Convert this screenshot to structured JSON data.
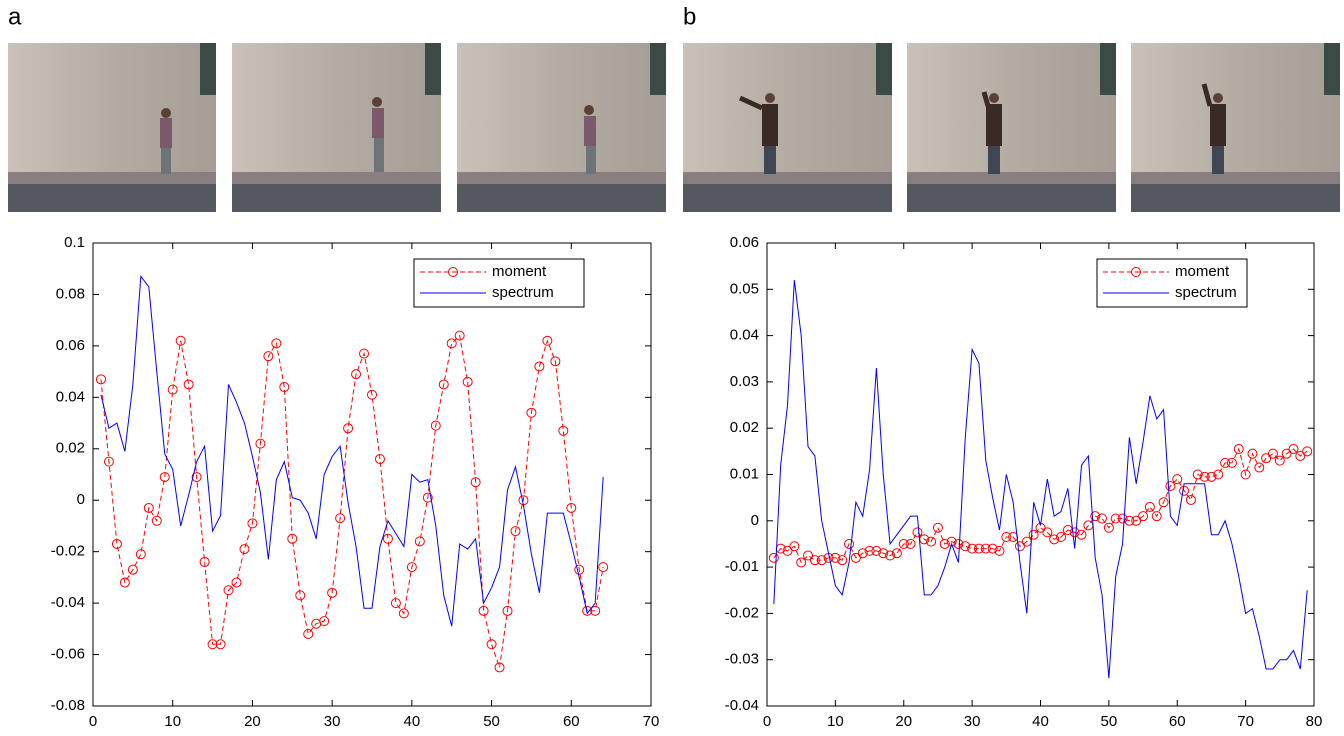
{
  "chart_data": [
    {
      "type": "line",
      "label": "a",
      "x": [
        1,
        2,
        3,
        4,
        5,
        6,
        7,
        8,
        9,
        10,
        11,
        12,
        13,
        14,
        15,
        16,
        17,
        18,
        19,
        20,
        21,
        22,
        23,
        24,
        25,
        26,
        27,
        28,
        29,
        30,
        31,
        32,
        33,
        34,
        35,
        36,
        37,
        38,
        39,
        40,
        41,
        42,
        43,
        44,
        45,
        46,
        47,
        48,
        49,
        50,
        51,
        52,
        53,
        54,
        55,
        56,
        57,
        58,
        59,
        60,
        61,
        62,
        63,
        64
      ],
      "series": [
        {
          "name": "moment",
          "color": "#ff0000",
          "dashed": true,
          "marker": "circle",
          "values": [
            0.047,
            0.015,
            -0.017,
            -0.032,
            -0.027,
            -0.021,
            -0.003,
            -0.008,
            0.009,
            0.043,
            0.062,
            0.045,
            0.009,
            -0.024,
            -0.056,
            -0.056,
            -0.035,
            -0.032,
            -0.019,
            -0.009,
            0.022,
            0.056,
            0.061,
            0.044,
            -0.015,
            -0.037,
            -0.052,
            -0.048,
            -0.047,
            -0.036,
            -0.007,
            0.028,
            0.049,
            0.057,
            0.041,
            0.016,
            -0.015,
            -0.04,
            -0.044,
            -0.026,
            -0.016,
            0.001,
            0.029,
            0.045,
            0.061,
            0.064,
            0.046,
            0.007,
            -0.043,
            -0.056,
            -0.065,
            -0.043,
            -0.012,
            0,
            0.034,
            0.052,
            0.062,
            0.054,
            0.027,
            -0.003,
            -0.027,
            -0.043,
            -0.043,
            -0.026
          ]
        },
        {
          "name": "spectrum",
          "color": "#0000ff",
          "dashed": false,
          "marker": "none",
          "values": [
            0.041,
            0.028,
            0.03,
            0.019,
            0.045,
            0.087,
            0.083,
            0.05,
            0.018,
            0.012,
            -0.01,
            0.002,
            0.015,
            0.021,
            -0.012,
            -0.006,
            0.045,
            0.038,
            0.03,
            0.017,
            0.003,
            -0.023,
            0.008,
            0.015,
            0.001,
            0,
            -0.005,
            -0.015,
            0.01,
            0.017,
            0.021,
            -0.001,
            -0.018,
            -0.042,
            -0.042,
            -0.018,
            -0.008,
            -0.013,
            -0.018,
            0.01,
            0.007,
            0.008,
            -0.01,
            -0.037,
            -0.049,
            -0.017,
            -0.019,
            -0.015,
            -0.04,
            -0.034,
            -0.026,
            0.004,
            0.013,
            -0.002,
            -0.021,
            -0.036,
            -0.005,
            -0.005,
            -0.005,
            -0.017,
            -0.03,
            -0.044,
            -0.04,
            0.009
          ]
        }
      ],
      "xlim": [
        0,
        70
      ],
      "xticks": [
        0,
        10,
        20,
        30,
        40,
        50,
        60,
        70
      ],
      "ylim": [
        -0.08,
        0.1
      ],
      "yticks": [
        -0.08,
        -0.06,
        -0.04,
        -0.02,
        0,
        0.02,
        0.04,
        0.06,
        0.08,
        0.1
      ],
      "legend": "upper right",
      "grid": false
    },
    {
      "type": "line",
      "label": "b",
      "x": [
        1,
        2,
        3,
        4,
        5,
        6,
        7,
        8,
        9,
        10,
        11,
        12,
        13,
        14,
        15,
        16,
        17,
        18,
        19,
        20,
        21,
        22,
        23,
        24,
        25,
        26,
        27,
        28,
        29,
        30,
        31,
        32,
        33,
        34,
        35,
        36,
        37,
        38,
        39,
        40,
        41,
        42,
        43,
        44,
        45,
        46,
        47,
        48,
        49,
        50,
        51,
        52,
        53,
        54,
        55,
        56,
        57,
        58,
        59,
        60,
        61,
        62,
        63,
        64,
        65,
        66,
        67,
        68,
        69,
        70,
        71,
        72,
        73,
        74,
        75,
        76,
        77,
        78,
        79
      ],
      "series": [
        {
          "name": "moment",
          "color": "#ff0000",
          "dashed": true,
          "marker": "circle",
          "values": [
            -0.008,
            -0.006,
            -0.0065,
            -0.0055,
            -0.009,
            -0.0075,
            -0.0085,
            -0.0085,
            -0.008,
            -0.008,
            -0.0085,
            -0.005,
            -0.008,
            -0.007,
            -0.0065,
            -0.0065,
            -0.007,
            -0.0075,
            -0.007,
            -0.005,
            -0.005,
            -0.0025,
            -0.004,
            -0.0045,
            -0.0015,
            -0.005,
            -0.0045,
            -0.005,
            -0.0055,
            -0.006,
            -0.006,
            -0.006,
            -0.006,
            -0.0065,
            -0.0035,
            -0.0035,
            -0.0055,
            -0.0045,
            -0.003,
            -0.0015,
            -0.0025,
            -0.004,
            -0.0035,
            -0.002,
            -0.0025,
            -0.003,
            -0.001,
            0.001,
            0.0005,
            -0.0015,
            0.0005,
            0.0005,
            0,
            0,
            0.001,
            0.003,
            0.001,
            0.004,
            0.0075,
            0.009,
            0.0065,
            0.0045,
            0.01,
            0.0095,
            0.0095,
            0.01,
            0.0125,
            0.0125,
            0.0155,
            0.01,
            0.0145,
            0.0115,
            0.0135,
            0.0145,
            0.013,
            0.0145,
            0.0155,
            0.014,
            0.015
          ]
        },
        {
          "name": "spectrum",
          "color": "#0000ff",
          "dashed": false,
          "marker": "none",
          "values": [
            -0.018,
            0.012,
            0.025,
            0.052,
            0.04,
            0.016,
            0.014,
            0,
            -0.007,
            -0.014,
            -0.016,
            -0.009,
            0.004,
            0.001,
            0.011,
            0.033,
            0.01,
            -0.005,
            -0.003,
            -0.001,
            0.001,
            0.001,
            -0.016,
            -0.016,
            -0.014,
            -0.01,
            -0.005,
            -0.009,
            0.018,
            0.037,
            0.034,
            0.013,
            0.005,
            -0.002,
            0.01,
            0.004,
            -0.009,
            -0.02,
            0.004,
            -0.001,
            0.009,
            0.001,
            0.002,
            0.007,
            -0.006,
            0.012,
            0.014,
            -0.008,
            -0.016,
            -0.034,
            -0.012,
            -0.005,
            0.018,
            0.008,
            0.017,
            0.027,
            0.022,
            0.024,
            0.001,
            -0.001,
            0.008,
            0.008,
            0.008,
            0.008,
            -0.003,
            -0.003,
            0,
            -0.005,
            -0.012,
            -0.02,
            -0.019,
            -0.025,
            -0.032,
            -0.032,
            -0.03,
            -0.03,
            -0.028,
            -0.032,
            -0.015
          ]
        }
      ],
      "xlim": [
        0,
        80
      ],
      "xticks": [
        0,
        10,
        20,
        30,
        40,
        50,
        60,
        70,
        80
      ],
      "ylim": [
        -0.04,
        0.06
      ],
      "yticks": [
        -0.04,
        -0.03,
        -0.02,
        -0.01,
        0,
        0.01,
        0.02,
        0.03,
        0.04,
        0.05,
        0.06
      ],
      "legend": "upper right",
      "grid": false
    }
  ]
}
